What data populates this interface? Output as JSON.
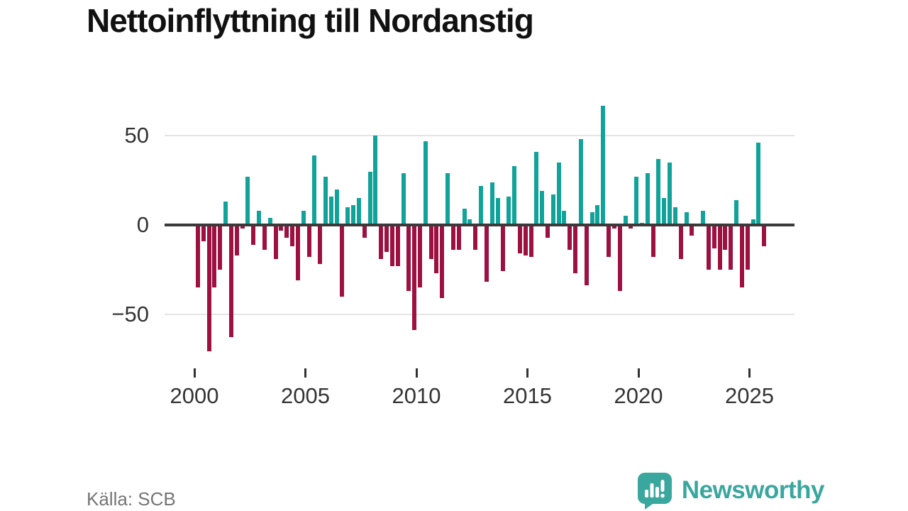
{
  "title": "Nettoinflyttning till Nordanstig",
  "source": "Källa: SCB",
  "branding": {
    "name": "Newsworthy",
    "logo_icon": "speech-bubble-bar-chart-exclamation"
  },
  "colors": {
    "positive": "#11a39a",
    "negative": "#9d1141",
    "grid": "#e4e4e4",
    "zero_line": "#3a3a3a",
    "axis_text": "#333333",
    "title_text": "#111111",
    "source_text": "#757575",
    "brand": "#3aa79e"
  },
  "chart_data": {
    "type": "bar",
    "title": "Nettoinflyttning till Nordanstig",
    "xlabel": "",
    "ylabel": "",
    "x_unit": "quarter",
    "x_start_year": 2000,
    "x_start_quarter": 1,
    "x_end": "2025-Q3",
    "frequency": "quarterly",
    "values": [
      -35,
      -9,
      -71,
      -35,
      -25,
      13,
      -63,
      -17,
      -2,
      27,
      -11,
      8,
      -14,
      4,
      -19,
      -3,
      -7,
      -12,
      -31,
      8,
      -18,
      39,
      -22,
      27,
      16,
      20,
      -40,
      10,
      11,
      15,
      -7,
      30,
      50,
      -19,
      -15,
      -23,
      -23,
      29,
      -37,
      -59,
      -35,
      47,
      -19,
      -27,
      -41,
      29,
      -14,
      -14,
      9,
      3,
      -14,
      22,
      -32,
      24,
      15,
      -26,
      16,
      33,
      -16,
      -17,
      -18,
      41,
      19,
      -7,
      17,
      35,
      8,
      -14,
      -27,
      48,
      -34,
      7,
      11,
      67,
      -18,
      -2,
      -37,
      5,
      -2,
      27,
      1,
      29,
      -18,
      37,
      15,
      35,
      10,
      -19,
      7,
      -6,
      0,
      8,
      -25,
      -13,
      -25,
      -14,
      -25,
      14,
      -35,
      -25,
      3,
      46,
      -12
    ],
    "y_ticks": [
      50,
      0,
      -50
    ],
    "y_tick_labels": [
      "50",
      "0",
      "−50"
    ],
    "x_tick_years": [
      2000,
      2005,
      2010,
      2015,
      2020,
      2025
    ],
    "ylim": [
      -75,
      70
    ],
    "grid": "horizontal-only",
    "legend": "none",
    "bar_color_rule": "teal-positive, crimson-negative"
  }
}
